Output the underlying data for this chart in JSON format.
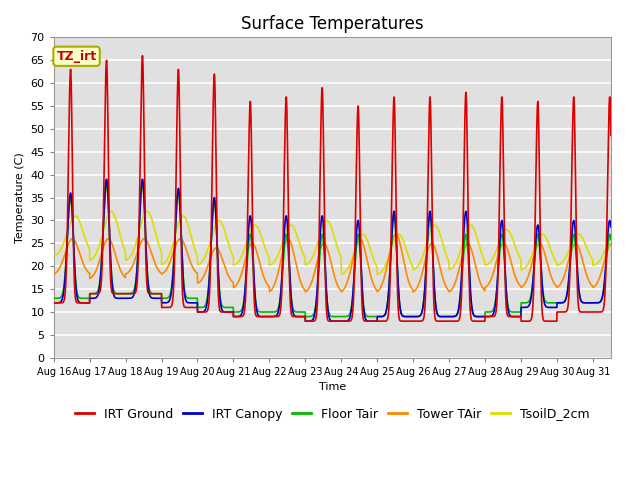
{
  "title": "Surface Temperatures",
  "xlabel": "Time",
  "ylabel": "Temperature (C)",
  "ylim": [
    0,
    70
  ],
  "yticks": [
    0,
    5,
    10,
    15,
    20,
    25,
    30,
    35,
    40,
    45,
    50,
    55,
    60,
    65,
    70
  ],
  "x_labels": [
    "Aug 16",
    "Aug 17",
    "Aug 18",
    "Aug 19",
    "Aug 20",
    "Aug 21",
    "Aug 22",
    "Aug 23",
    "Aug 24",
    "Aug 25",
    "Aug 26",
    "Aug 27",
    "Aug 28",
    "Aug 29",
    "Aug 30",
    "Aug 31"
  ],
  "annotation_text": "TZ_irt",
  "annotation_color": "#cc0000",
  "annotation_bg": "#ffffcc",
  "annotation_border": "#aaaa00",
  "series": [
    {
      "label": "IRT Ground",
      "color": "#dd0000",
      "lw": 1.2
    },
    {
      "label": "IRT Canopy",
      "color": "#0000cc",
      "lw": 1.2
    },
    {
      "label": "Floor Tair",
      "color": "#00bb00",
      "lw": 1.2
    },
    {
      "label": "Tower TAir",
      "color": "#ff8800",
      "lw": 1.2
    },
    {
      "label": "TsoilD_2cm",
      "color": "#dddd00",
      "lw": 1.2
    }
  ],
  "background_color": "#e0e0e0",
  "grid_color": "#ffffff",
  "title_fontsize": 12,
  "axis_fontsize": 8,
  "legend_fontsize": 9,
  "peak_ground": [
    63,
    65,
    66,
    63,
    62,
    56,
    57,
    59,
    55,
    57,
    57,
    58,
    57,
    56,
    57,
    57
  ],
  "trough_ground": [
    12,
    14,
    14,
    11,
    10,
    9,
    9,
    8,
    8,
    8,
    8,
    8,
    9,
    8,
    10,
    10
  ],
  "peak_canopy": [
    36,
    39,
    39,
    37,
    35,
    31,
    31,
    31,
    30,
    32,
    32,
    32,
    30,
    29,
    30,
    30
  ],
  "trough_canopy": [
    12,
    13,
    13,
    12,
    10,
    9,
    9,
    8,
    8,
    9,
    9,
    9,
    9,
    11,
    12,
    12
  ],
  "peak_floor": [
    35,
    38,
    38,
    36,
    34,
    27,
    27,
    27,
    27,
    31,
    31,
    27,
    27,
    27,
    27,
    27
  ],
  "trough_floor": [
    13,
    14,
    14,
    13,
    11,
    10,
    10,
    9,
    9,
    9,
    9,
    9,
    10,
    12,
    12,
    12
  ],
  "peak_tower": [
    26,
    26,
    26,
    26,
    24,
    25,
    26,
    25,
    26,
    27,
    25,
    25,
    25,
    25,
    25,
    25
  ],
  "trough_tower": [
    18,
    17,
    18,
    18,
    16,
    15,
    14,
    14,
    14,
    14,
    14,
    14,
    15,
    15,
    15,
    15
  ],
  "peak_soil": [
    31,
    32,
    32,
    31,
    30,
    29,
    29,
    30,
    27,
    27,
    29,
    29,
    28,
    27,
    27,
    27
  ],
  "trough_soil": [
    22,
    21,
    21,
    20,
    20,
    20,
    20,
    20,
    18,
    18,
    19,
    19,
    20,
    19,
    20,
    20
  ]
}
